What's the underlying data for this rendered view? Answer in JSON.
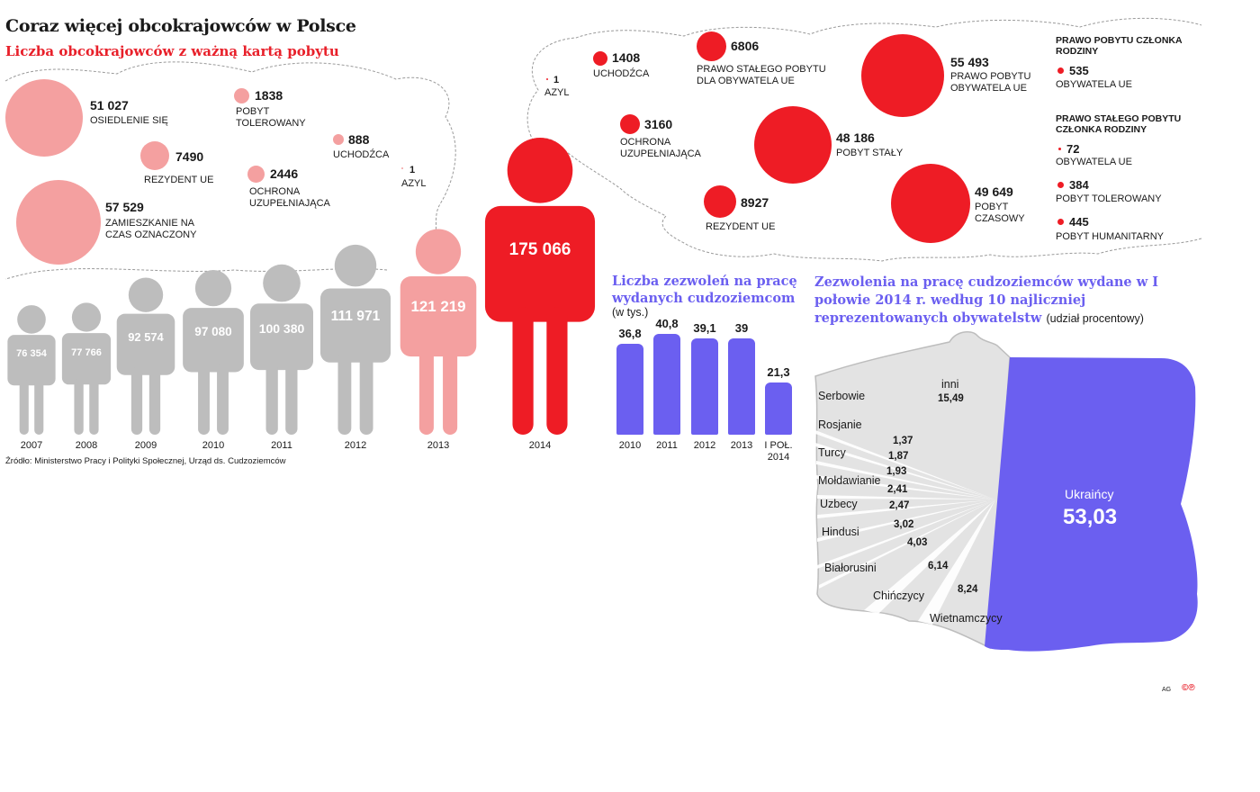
{
  "header": {
    "title": "Coraz więcej obcokrajowców w Polsce",
    "subtitle": "Liczba obcokrajowców z ważną kartą pobytu",
    "source": "Źródło: Ministerstwo Pracy i Polityki Społecznej, Urząd ds. Cudzoziemców"
  },
  "chart_data": [
    {
      "type": "bar",
      "categories": [
        "2007",
        "2008",
        "2009",
        "2010",
        "2011",
        "2012",
        "2013",
        "2014"
      ],
      "values": [
        76354,
        77766,
        92574,
        97080,
        100380,
        111971,
        121219,
        175066
      ],
      "value_labels": [
        "76 354",
        "77 766",
        "92 574",
        "97 080",
        "100 380",
        "111 971",
        "121 219",
        "175 066"
      ],
      "colors": [
        "#bdbdbd",
        "#bdbdbd",
        "#bdbdbd",
        "#bdbdbd",
        "#bdbdbd",
        "#bdbdbd",
        "#f4a0a0",
        "#ee1c25"
      ]
    },
    {
      "type": "scatter",
      "year": "2013",
      "items": [
        {
          "value": "51 027",
          "n": 51027,
          "label": "OSIEDLENIE SIĘ"
        },
        {
          "value": "7490",
          "n": 7490,
          "label": "REZYDENT UE"
        },
        {
          "value": "57 529",
          "n": 57529,
          "label": "ZAMIESZKANIE NA CZAS OZNACZONY"
        },
        {
          "value": "1838",
          "n": 1838,
          "label": "POBYT TOLEROWANY"
        },
        {
          "value": "2446",
          "n": 2446,
          "label": "OCHRONA UZUPEŁNIAJĄCA"
        },
        {
          "value": "888",
          "n": 888,
          "label": "UCHODŹCA"
        },
        {
          "value": "1",
          "n": 1,
          "label": "AZYL"
        }
      ]
    },
    {
      "type": "scatter",
      "year": "2014",
      "items": [
        {
          "value": "1",
          "n": 1,
          "label": "AZYL"
        },
        {
          "value": "1408",
          "n": 1408,
          "label": "UCHODŹCA"
        },
        {
          "value": "3160",
          "n": 3160,
          "label": "OCHRONA UZUPEŁNIAJĄCA"
        },
        {
          "value": "6806",
          "n": 6806,
          "label": "PRAWO STAŁEGO POBYTU DLA OBYWATELA UE"
        },
        {
          "value": "8927",
          "n": 8927,
          "label": "REZYDENT UE"
        },
        {
          "value": "48 186",
          "n": 48186,
          "label": "POBYT STAŁY"
        },
        {
          "value": "55 493",
          "n": 55493,
          "label": "PRAWO POBYTU OBYWATELA UE"
        },
        {
          "value": "49 649",
          "n": 49649,
          "label": "POBYT CZASOWY"
        }
      ],
      "family": {
        "heading_1": "PRAWO POBYTU CZŁONKA RODZINY",
        "heading_2": "PRAWO STAŁEGO POBYTU CZŁONKA RODZINY",
        "items": [
          {
            "value": "535",
            "n": 535,
            "label": "OBYWATELA UE"
          },
          {
            "value": "72",
            "n": 72,
            "label": "OBYWATELA UE"
          },
          {
            "value": "384",
            "n": 384,
            "label": "POBYT TOLEROWANY"
          },
          {
            "value": "445",
            "n": 445,
            "label": "POBYT HUMANITARNY"
          }
        ]
      }
    },
    {
      "type": "bar",
      "title": "Liczba zezwoleń na pracę wydanych cudzoziemcom",
      "unit": "(w tys.)",
      "categories": [
        "2010",
        "2011",
        "2012",
        "2013",
        "I POŁ. 2014"
      ],
      "values": [
        36.8,
        40.8,
        39.1,
        39,
        21.3
      ],
      "value_labels": [
        "36,8",
        "40,8",
        "39,1",
        "39",
        "21,3"
      ],
      "color": "#6b5ff0"
    },
    {
      "type": "pie",
      "title": "Zezwolenia na pracę cudzoziemców wydane w I połowie 2014 r. według 10 najliczniej reprezentowanych obywatelstw",
      "unit": "(udział procentowy)",
      "categories": [
        "Ukraińcy",
        "inni",
        "Serbowie",
        "Rosjanie",
        "Turcy",
        "Mołdawianie",
        "Uzbecy",
        "Hindusi",
        "Białorusini",
        "Chińczycy",
        "Wietnamczycy"
      ],
      "values": [
        53.03,
        15.49,
        1.37,
        1.87,
        1.93,
        2.41,
        2.47,
        3.02,
        4.03,
        6.14,
        8.24
      ],
      "value_labels": [
        "53,03",
        "15,49",
        "1,37",
        "1,87",
        "1,93",
        "2,41",
        "2,47",
        "3,02",
        "4,03",
        "6,14",
        "8,24"
      ],
      "highlight_color": "#6b5ff0"
    }
  ],
  "footer": {
    "agency": "AG",
    "copyright": "©℗"
  }
}
